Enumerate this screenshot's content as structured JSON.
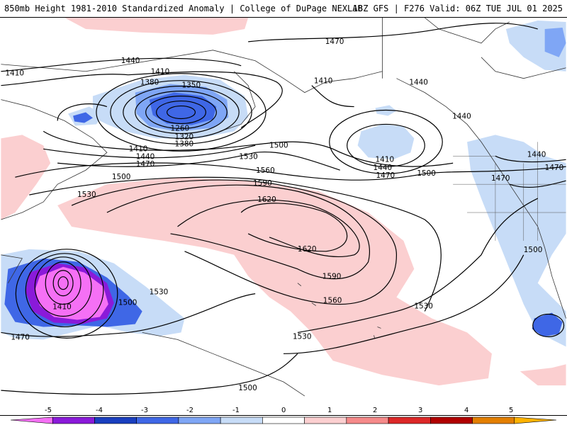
{
  "header": {
    "left": "850mb Height 1981-2010 Standardized Anomaly | College of DuPage NEXLAB",
    "right": "18Z GFS | F276 Valid: 06Z TUE JUL 01 2025"
  },
  "contour_labels": [
    "1470",
    "1440",
    "1410",
    "1410",
    "1380",
    "1350",
    "1260",
    "1320",
    "1380",
    "1410",
    "1440",
    "1470",
    "1500",
    "1530",
    "1560",
    "1590",
    "1620",
    "1620",
    "1590",
    "1560",
    "1530",
    "1530",
    "1500",
    "1410",
    "1440",
    "1410",
    "1440",
    "1470",
    "1500",
    "1440",
    "1440",
    "1470",
    "1470",
    "1500",
    "1530",
    "1530",
    "1410",
    "1500",
    "1470",
    "1500",
    "1530"
  ],
  "colorbar": {
    "ticks": [
      "-5",
      "-4",
      "-3",
      "-2",
      "-1",
      "0",
      "1",
      "2",
      "3",
      "4",
      "5"
    ],
    "colors": [
      "#f570f5",
      "#8a1ad9",
      "#1a3fbf",
      "#3f67e6",
      "#7fa6f5",
      "#c7dcf7",
      "#ffffff",
      "#fbcfd0",
      "#f58a8a",
      "#dc2828",
      "#b00000",
      "#e37f00",
      "#ffb300"
    ]
  }
}
